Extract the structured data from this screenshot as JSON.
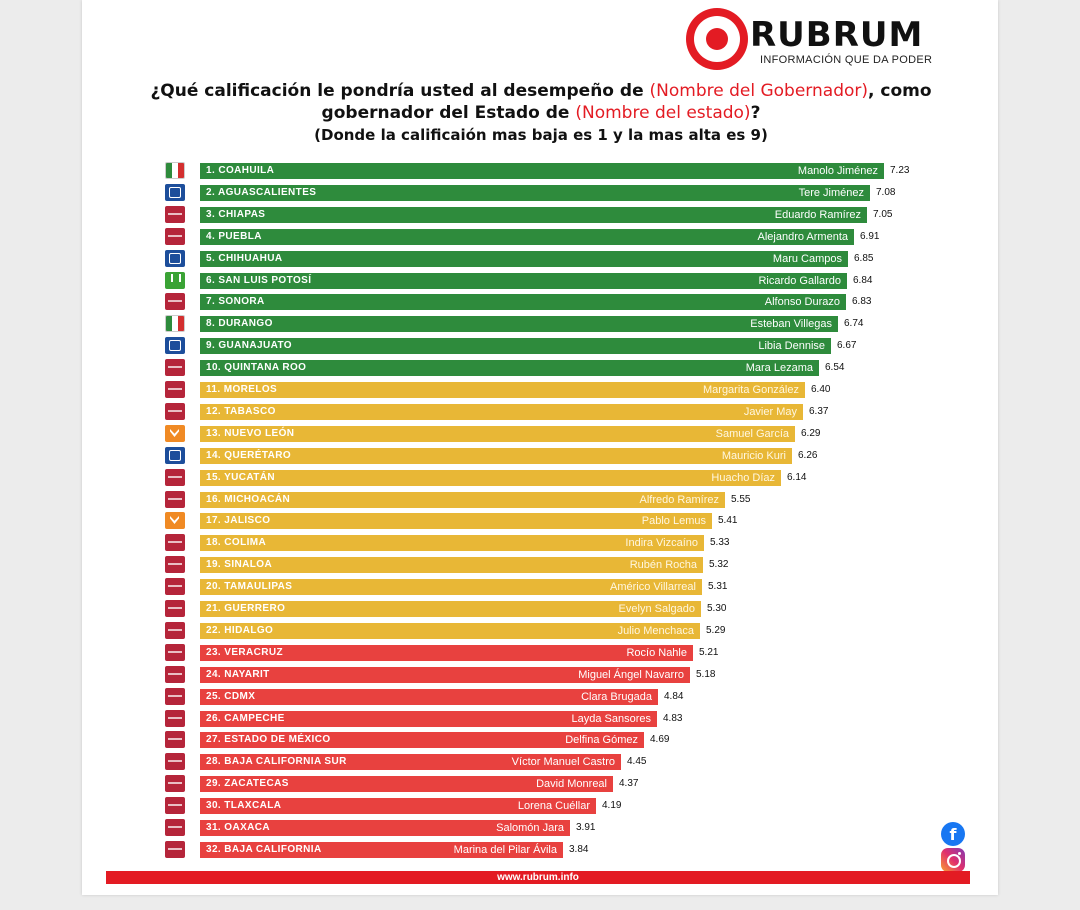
{
  "brand": {
    "name": "RUBRUM",
    "tagline": "INFORMACIÓN QUE DA PODER",
    "red": "#e31b23"
  },
  "header": {
    "title_part1": "¿Qué calificación le pondría usted al desempeño de",
    "title_highlight1": "(Nombre del Gobernador)",
    "title_part2": ", como gobernador del Estado de",
    "title_highlight2": "(Nombre del estado)",
    "title_part3": "?",
    "subtitle": "(Donde la calificaión mas baja es 1 y la mas alta es 9)"
  },
  "colors": {
    "green": "#2e8b3c",
    "yellow": "#e8b736",
    "red": "#e8413f"
  },
  "chart_data": {
    "type": "bar",
    "orientation": "horizontal",
    "scale_note": "Donde la calificaión mas baja es 1 y la mas alta es 9",
    "rows": [
      {
        "state": "1. COAHUILA",
        "governor": "Manolo Jiménez",
        "value": "7.23",
        "party": "pri",
        "color": "green"
      },
      {
        "state": "2. AGUASCALIENTES",
        "governor": "Tere Jiménez",
        "value": "7.08",
        "party": "pan",
        "color": "green"
      },
      {
        "state": "3. CHIAPAS",
        "governor": "Eduardo Ramírez",
        "value": "7.05",
        "party": "morena",
        "color": "green"
      },
      {
        "state": "4. PUEBLA",
        "governor": "Alejandro Armenta",
        "value": "6.91",
        "party": "morena",
        "color": "green"
      },
      {
        "state": "5. CHIHUAHUA",
        "governor": "Maru Campos",
        "value": "6.85",
        "party": "pan",
        "color": "green"
      },
      {
        "state": "6. SAN LUIS POTOSÍ",
        "governor": "Ricardo Gallardo",
        "value": "6.84",
        "party": "pvem",
        "color": "green"
      },
      {
        "state": "7. SONORA",
        "governor": "Alfonso Durazo",
        "value": "6.83",
        "party": "morena",
        "color": "green"
      },
      {
        "state": "8. DURANGO",
        "governor": "Esteban Villegas",
        "value": "6.74",
        "party": "pri",
        "color": "green"
      },
      {
        "state": "9. GUANAJUATO",
        "governor": "Libia Dennise",
        "value": "6.67",
        "party": "pan",
        "color": "green"
      },
      {
        "state": "10. QUINTANA ROO",
        "governor": "Mara Lezama",
        "value": "6.54",
        "party": "morena",
        "color": "green"
      },
      {
        "state": "11. MORELOS",
        "governor": "Margarita González",
        "value": "6.40",
        "party": "morena",
        "color": "yellow"
      },
      {
        "state": "12. TABASCO",
        "governor": "Javier May",
        "value": "6.37",
        "party": "morena",
        "color": "yellow"
      },
      {
        "state": "13. NUEVO LEÓN",
        "governor": "Samuel García",
        "value": "6.29",
        "party": "mc",
        "color": "yellow"
      },
      {
        "state": "14. QUERÉTARO",
        "governor": "Mauricio Kuri",
        "value": "6.26",
        "party": "pan",
        "color": "yellow"
      },
      {
        "state": "15. YUCATÁN",
        "governor": "Huacho Díaz",
        "value": "6.14",
        "party": "morena",
        "color": "yellow"
      },
      {
        "state": "16. MICHOACÁN",
        "governor": "Alfredo Ramírez",
        "value": "5.55",
        "party": "morena",
        "color": "yellow"
      },
      {
        "state": "17. JALISCO",
        "governor": "Pablo Lemus",
        "value": "5.41",
        "party": "mc",
        "color": "yellow"
      },
      {
        "state": "18. COLIMA",
        "governor": "Indira Vizcaíno",
        "value": "5.33",
        "party": "morena",
        "color": "yellow"
      },
      {
        "state": "19. SINALOA",
        "governor": "Rubén Rocha",
        "value": "5.32",
        "party": "morena",
        "color": "yellow"
      },
      {
        "state": "20. TAMAULIPAS",
        "governor": "Américo Villarreal",
        "value": "5.31",
        "party": "morena",
        "color": "yellow"
      },
      {
        "state": "21. GUERRERO",
        "governor": "Evelyn Salgado",
        "value": "5.30",
        "party": "morena",
        "color": "yellow"
      },
      {
        "state": "22. HIDALGO",
        "governor": "Julio Menchaca",
        "value": "5.29",
        "party": "morena",
        "color": "yellow"
      },
      {
        "state": "23. VERACRUZ",
        "governor": "Rocío Nahle",
        "value": "5.21",
        "party": "morena",
        "color": "red"
      },
      {
        "state": "24. NAYARIT",
        "governor": "Miguel Ángel Navarro",
        "value": "5.18",
        "party": "morena",
        "color": "red"
      },
      {
        "state": "25. CDMX",
        "governor": "Clara Brugada",
        "value": "4.84",
        "party": "morena",
        "color": "red"
      },
      {
        "state": "26. CAMPECHE",
        "governor": "Layda Sansores",
        "value": "4.83",
        "party": "morena",
        "color": "red"
      },
      {
        "state": "27. ESTADO DE MÉXICO",
        "governor": "Delfina Gómez",
        "value": "4.69",
        "party": "morena",
        "color": "red"
      },
      {
        "state": "28. BAJA CALIFORNIA SUR",
        "governor": "Víctor Manuel Castro",
        "value": "4.45",
        "party": "morena",
        "color": "red"
      },
      {
        "state": "29. ZACATECAS",
        "governor": "David Monreal",
        "value": "4.37",
        "party": "morena",
        "color": "red"
      },
      {
        "state": "30. TLAXCALA",
        "governor": "Lorena Cuéllar",
        "value": "4.19",
        "party": "morena",
        "color": "red"
      },
      {
        "state": "31. OAXACA",
        "governor": "Salomón Jara",
        "value": "3.91",
        "party": "morena",
        "color": "red"
      },
      {
        "state": "32. BAJA CALIFORNIA",
        "governor": "Marina del Pilar Ávila",
        "value": "3.84",
        "party": "morena",
        "color": "red"
      }
    ]
  },
  "footer": {
    "url": "www.rubrum.info",
    "social_icons": [
      "facebook-icon",
      "instagram-icon"
    ]
  }
}
